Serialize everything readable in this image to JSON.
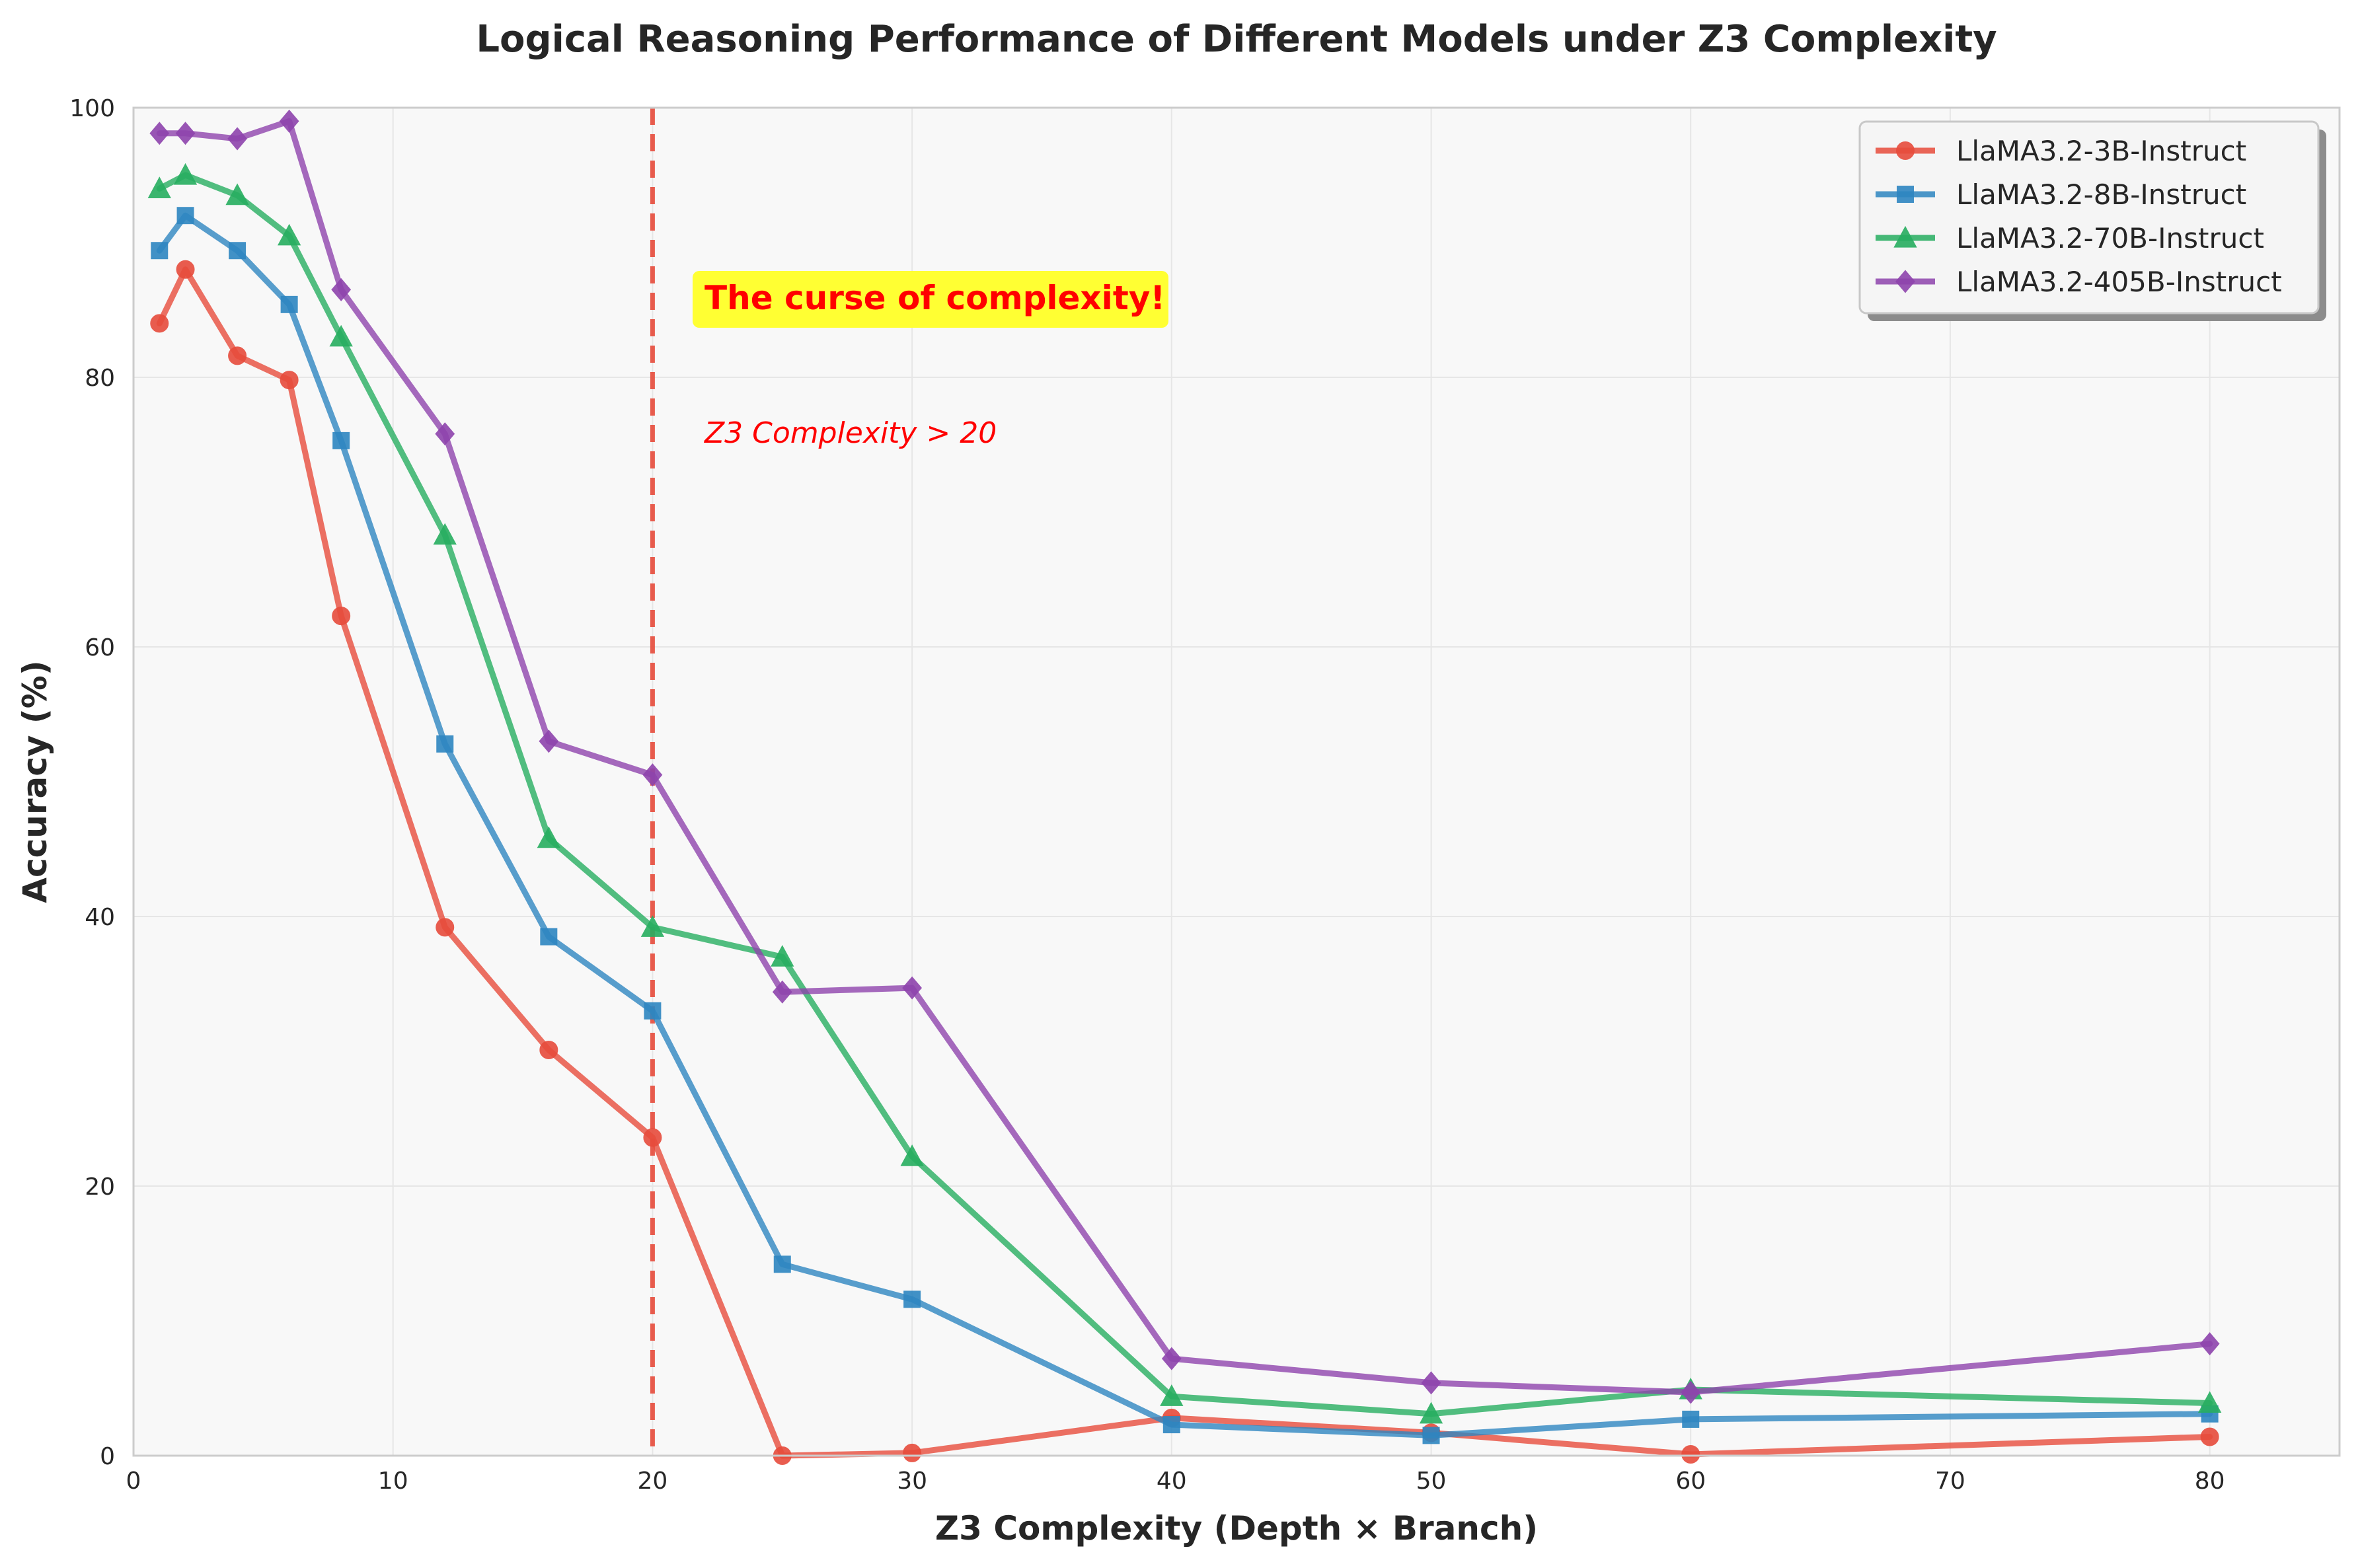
{
  "chart_data": {
    "type": "line",
    "title": "Logical Reasoning Performance of Different Models under Z3 Complexity",
    "xlabel": "Z3 Complexity (Depth × Branch)",
    "ylabel": "Accuracy (%)",
    "xlim": [
      0,
      85
    ],
    "ylim": [
      0,
      100
    ],
    "xticks": [
      0,
      10,
      20,
      30,
      40,
      50,
      60,
      70,
      80
    ],
    "yticks": [
      0,
      20,
      40,
      60,
      80,
      100
    ],
    "grid": true,
    "legend_position": "top-right",
    "x": [
      1,
      2,
      4,
      6,
      8,
      12,
      16,
      20,
      25,
      30,
      40,
      50,
      60,
      80
    ],
    "series": [
      {
        "name": "LlaMA3.2-3B-Instruct",
        "color": "#e74c3c",
        "marker": "circle",
        "values": [
          84.0,
          88.0,
          81.6,
          79.8,
          62.3,
          39.2,
          30.1,
          23.6,
          0.0,
          0.2,
          2.8,
          1.7,
          0.1,
          1.4
        ]
      },
      {
        "name": "LlaMA3.2-8B-Instruct",
        "color": "#2e86c1",
        "marker": "square",
        "values": [
          89.4,
          92.0,
          89.4,
          85.4,
          75.3,
          52.8,
          38.5,
          33.0,
          14.2,
          11.6,
          2.3,
          1.5,
          2.7,
          3.1
        ]
      },
      {
        "name": "LlaMA3.2-70B-Instruct",
        "color": "#27ae60",
        "marker": "triangle",
        "values": [
          94.0,
          95.0,
          93.5,
          90.5,
          83.0,
          68.3,
          45.8,
          39.2,
          37.0,
          22.2,
          4.4,
          3.1,
          4.9,
          3.9
        ]
      },
      {
        "name": "LlaMA3.2-405B-Instruct",
        "color": "#8e44ad",
        "marker": "diamond",
        "values": [
          98.1,
          98.1,
          97.7,
          99.0,
          86.5,
          75.8,
          53.0,
          50.5,
          34.4,
          34.7,
          7.2,
          5.4,
          4.7,
          8.3
        ]
      }
    ],
    "threshold_line": {
      "x": 20,
      "color": "#e74c3c",
      "style": "dashed"
    },
    "annotations": {
      "headline": "The curse of complexity!",
      "headline_color": "#ff0000",
      "headline_background": "#ffff33",
      "note": "Z3 Complexity > 20"
    }
  }
}
